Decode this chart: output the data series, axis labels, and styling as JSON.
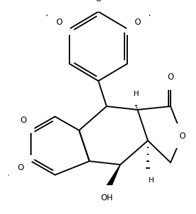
{
  "bg_color": "#ffffff",
  "bond_color": "#000000",
  "bond_width": 1.4,
  "font_size": 8.5,
  "figsize": [
    2.85,
    3.12
  ],
  "dpi": 100,
  "xlim": [
    0,
    285
  ],
  "ylim": [
    0,
    312
  ]
}
